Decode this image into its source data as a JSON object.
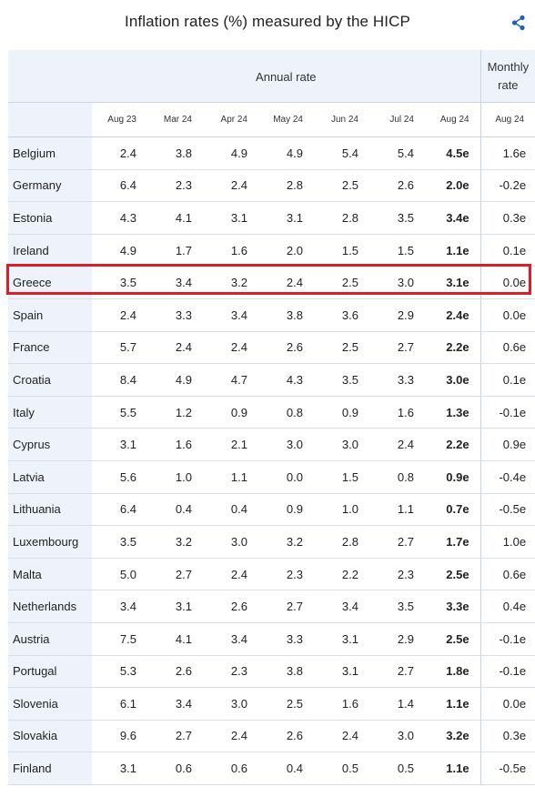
{
  "chart_data": {
    "type": "table",
    "title": "Inflation rates (%) measured by the HICP",
    "group_headers": {
      "annual": "Annual rate",
      "monthly": "Monthly rate"
    },
    "columns": [
      "Aug 23",
      "Mar 24",
      "Apr 24",
      "May 24",
      "Jun 24",
      "Jul 24",
      "Aug 24",
      "Aug 24"
    ],
    "rows": [
      {
        "country": "Belgium",
        "values": [
          "2.4",
          "3.8",
          "4.9",
          "4.9",
          "5.4",
          "5.4",
          "4.5e",
          "1.6e"
        ]
      },
      {
        "country": "Germany",
        "values": [
          "6.4",
          "2.3",
          "2.4",
          "2.8",
          "2.5",
          "2.6",
          "2.0e",
          "-0.2e"
        ]
      },
      {
        "country": "Estonia",
        "values": [
          "4.3",
          "4.1",
          "3.1",
          "3.1",
          "2.8",
          "3.5",
          "3.4e",
          "0.3e"
        ]
      },
      {
        "country": "Ireland",
        "values": [
          "4.9",
          "1.7",
          "1.6",
          "2.0",
          "1.5",
          "1.5",
          "1.1e",
          "0.1e"
        ]
      },
      {
        "country": "Greece",
        "values": [
          "3.5",
          "3.4",
          "3.2",
          "2.4",
          "2.5",
          "3.0",
          "3.1e",
          "0.0e"
        ]
      },
      {
        "country": "Spain",
        "values": [
          "2.4",
          "3.3",
          "3.4",
          "3.8",
          "3.6",
          "2.9",
          "2.4e",
          "0.0e"
        ]
      },
      {
        "country": "France",
        "values": [
          "5.7",
          "2.4",
          "2.4",
          "2.6",
          "2.5",
          "2.7",
          "2.2e",
          "0.6e"
        ]
      },
      {
        "country": "Croatia",
        "values": [
          "8.4",
          "4.9",
          "4.7",
          "4.3",
          "3.5",
          "3.3",
          "3.0e",
          "0.1e"
        ]
      },
      {
        "country": "Italy",
        "values": [
          "5.5",
          "1.2",
          "0.9",
          "0.8",
          "0.9",
          "1.6",
          "1.3e",
          "-0.1e"
        ]
      },
      {
        "country": "Cyprus",
        "values": [
          "3.1",
          "1.6",
          "2.1",
          "3.0",
          "3.0",
          "2.4",
          "2.2e",
          "0.9e"
        ]
      },
      {
        "country": "Latvia",
        "values": [
          "5.6",
          "1.0",
          "1.1",
          "0.0",
          "1.5",
          "0.8",
          "0.9e",
          "-0.4e"
        ]
      },
      {
        "country": "Lithuania",
        "values": [
          "6.4",
          "0.4",
          "0.4",
          "0.9",
          "1.0",
          "1.1",
          "0.7e",
          "-0.5e"
        ]
      },
      {
        "country": "Luxembourg",
        "values": [
          "3.5",
          "3.2",
          "3.0",
          "3.2",
          "2.8",
          "2.7",
          "1.7e",
          "1.0e"
        ]
      },
      {
        "country": "Malta",
        "values": [
          "5.0",
          "2.7",
          "2.4",
          "2.3",
          "2.2",
          "2.3",
          "2.5e",
          "0.6e"
        ]
      },
      {
        "country": "Netherlands",
        "values": [
          "3.4",
          "3.1",
          "2.6",
          "2.7",
          "3.4",
          "3.5",
          "3.3e",
          "0.4e"
        ]
      },
      {
        "country": "Austria",
        "values": [
          "7.5",
          "4.1",
          "3.4",
          "3.3",
          "3.1",
          "2.9",
          "2.5e",
          "-0.1e"
        ]
      },
      {
        "country": "Portugal",
        "values": [
          "5.3",
          "2.6",
          "2.3",
          "3.8",
          "3.1",
          "2.7",
          "1.8e",
          "-0.1e"
        ]
      },
      {
        "country": "Slovenia",
        "values": [
          "6.1",
          "3.4",
          "3.0",
          "2.5",
          "1.6",
          "1.4",
          "1.1e",
          "0.0e"
        ]
      },
      {
        "country": "Slovakia",
        "values": [
          "9.6",
          "2.7",
          "2.4",
          "2.6",
          "2.4",
          "3.0",
          "3.2e",
          "0.3e"
        ]
      },
      {
        "country": "Finland",
        "values": [
          "3.1",
          "0.6",
          "0.6",
          "0.4",
          "0.5",
          "0.5",
          "1.1e",
          "-0.5e"
        ]
      }
    ],
    "bold_column_index": 6,
    "highlighted_row": "Greece",
    "colors": {
      "header_bg": "#eef3fb",
      "highlight_border": "#d9202a",
      "share_icon": "#1f5fbf"
    }
  },
  "icons": {
    "share": "share-icon"
  }
}
